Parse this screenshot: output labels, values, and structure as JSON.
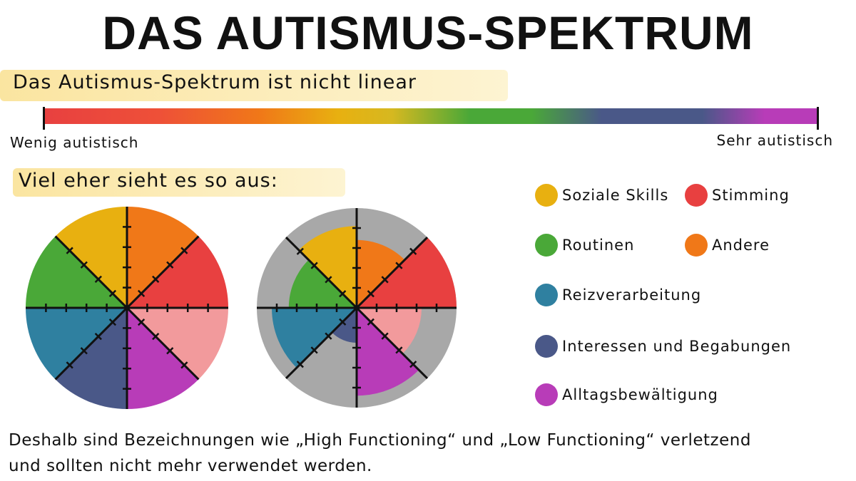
{
  "header": {
    "title": "DAS AUTISMUS-SPEKTRUM",
    "subtitle": "Das Autismus-Spektrum ist nicht linear"
  },
  "scale": {
    "left_label": "Wenig autistisch",
    "right_label": "Sehr autistisch"
  },
  "section_heading": "Viel eher sieht es so aus:",
  "legend": [
    {
      "label": "Soziale Skills",
      "color": "#e8b010"
    },
    {
      "label": "Stimming",
      "color": "#e84040"
    },
    {
      "label": "Routinen",
      "color": "#4aa838"
    },
    {
      "label": "Andere",
      "color": "#f07818"
    },
    {
      "label": "Reizverarbeitung",
      "color": "#2f80a0"
    },
    {
      "label": "Interessen und Begabungen",
      "color": "#4a5888"
    },
    {
      "label": "Alltagsbewältigung",
      "color": "#b83cb8"
    }
  ],
  "footer": {
    "lines": [
      "Deshalb sind Bezeichnungen wie „High Functioning“ und „Low Functioning“ verletzend",
      "und sollten nicht mehr verwendet werden."
    ]
  }
}
